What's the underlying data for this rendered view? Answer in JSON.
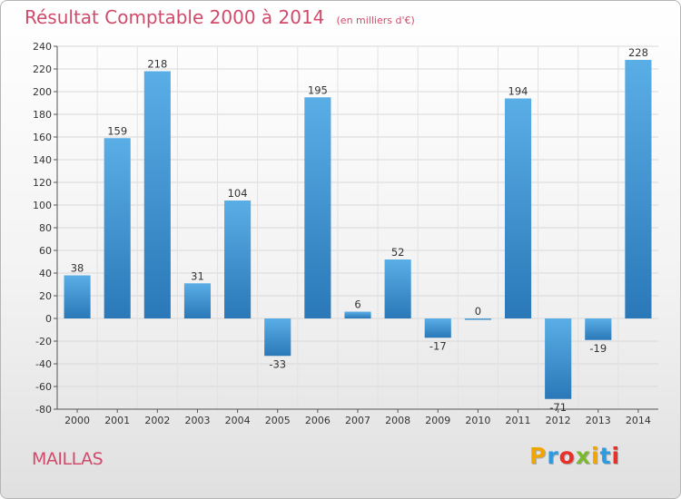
{
  "header": {
    "title": "Résultat Comptable 2000 à 2014",
    "subtitle": "(en milliers d'€)"
  },
  "commune": "MAILLAS",
  "logo": {
    "letters": [
      "P",
      "r",
      "o",
      "x",
      "i",
      "t",
      "i"
    ],
    "colors": [
      "#f0a500",
      "#2e9be0",
      "#e8302a",
      "#7cb82f",
      "#f0a500",
      "#2e9be0",
      "#e8302a"
    ]
  },
  "colors": {
    "bar_top": "#5aaee6",
    "bar_bottom": "#2a78b8",
    "title": "#d04b6b"
  },
  "chart_data": {
    "type": "bar",
    "categories": [
      "2000",
      "2001",
      "2002",
      "2003",
      "2004",
      "2005",
      "2006",
      "2007",
      "2008",
      "2009",
      "2010",
      "2011",
      "2012",
      "2013",
      "2014"
    ],
    "values": [
      38,
      159,
      218,
      31,
      104,
      -33,
      195,
      6,
      52,
      -17,
      0,
      194,
      -71,
      -19,
      228
    ],
    "data_labels": [
      "38",
      "159",
      "218",
      "31",
      "104",
      "-33",
      "195",
      "6",
      "52",
      "-17",
      "0",
      "194",
      "-71",
      "-19",
      "228"
    ],
    "ylim": [
      -80,
      240
    ],
    "yticks": [
      -80,
      -60,
      -40,
      -20,
      0,
      20,
      40,
      60,
      80,
      100,
      120,
      140,
      160,
      180,
      200,
      220,
      240
    ],
    "grid": true
  }
}
